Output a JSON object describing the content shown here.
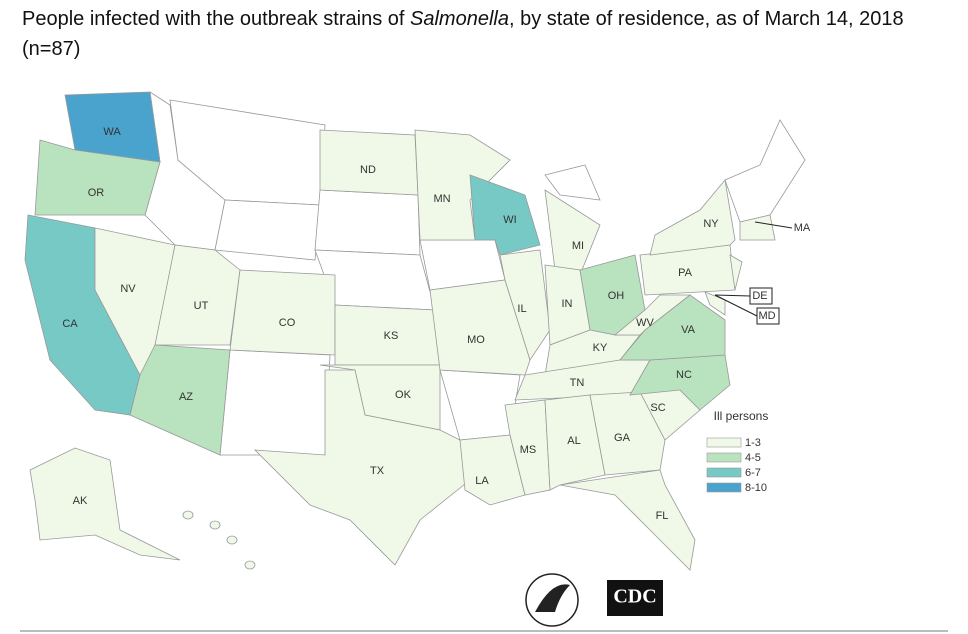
{
  "title": {
    "before": "People infected with the outbreak strains of ",
    "italic": "Salmonella",
    "after": ", by state of residence, as of March 14, 2018 (n=87)"
  },
  "map": {
    "states": [
      {
        "label": "WA",
        "color": "#4aa3cc"
      },
      {
        "label": "OR",
        "color": "#b9e3bf"
      },
      {
        "label": "CA",
        "color": "#76c9c4"
      },
      {
        "label": "NV",
        "color": "#f0f8e8"
      },
      {
        "label": "UT",
        "color": "#f0f8e8"
      },
      {
        "label": "AZ",
        "color": "#b9e3bf"
      },
      {
        "label": "CO",
        "color": "#f0f8e8"
      },
      {
        "label": "ND",
        "color": "#f0f8e8"
      },
      {
        "label": "KS",
        "color": "#f0f8e8"
      },
      {
        "label": "OK",
        "color": "#f0f8e8"
      },
      {
        "label": "TX",
        "color": "#f0f8e8"
      },
      {
        "label": "MN",
        "color": "#f0f8e8"
      },
      {
        "label": "MO",
        "color": "#f0f8e8"
      },
      {
        "label": "LA",
        "color": "#f0f8e8"
      },
      {
        "label": "WI",
        "color": "#76c9c4"
      },
      {
        "label": "IL",
        "color": "#f0f8e8"
      },
      {
        "label": "MI",
        "color": "#f0f8e8"
      },
      {
        "label": "IN",
        "color": "#f0f8e8"
      },
      {
        "label": "OH",
        "color": "#b9e3bf"
      },
      {
        "label": "KY",
        "color": "#f0f8e8"
      },
      {
        "label": "TN",
        "color": "#f0f8e8"
      },
      {
        "label": "MS",
        "color": "#f0f8e8"
      },
      {
        "label": "AL",
        "color": "#f0f8e8"
      },
      {
        "label": "GA",
        "color": "#f0f8e8"
      },
      {
        "label": "FL",
        "color": "#f0f8e8"
      },
      {
        "label": "SC",
        "color": "#f0f8e8"
      },
      {
        "label": "NC",
        "color": "#b9e3bf"
      },
      {
        "label": "VA",
        "color": "#b9e3bf"
      },
      {
        "label": "WV",
        "color": "#f0f8e8"
      },
      {
        "label": "PA",
        "color": "#f0f8e8"
      },
      {
        "label": "NY",
        "color": "#f0f8e8"
      },
      {
        "label": "MA",
        "color": "#f0f8e8"
      },
      {
        "label": "DE",
        "color": "#f0f8e8"
      },
      {
        "label": "MD",
        "color": "#f0f8e8"
      },
      {
        "label": "AK",
        "color": "#f0f8e8"
      }
    ]
  },
  "legend": {
    "title": "Ill persons",
    "items": [
      {
        "label": "1-3",
        "color": "#f0f8e8"
      },
      {
        "label": "4-5",
        "color": "#b9e3bf"
      },
      {
        "label": "6-7",
        "color": "#76c9c4"
      },
      {
        "label": "8-10",
        "color": "#4aa3cc"
      }
    ]
  },
  "logo": {
    "cdc": "CDC"
  }
}
